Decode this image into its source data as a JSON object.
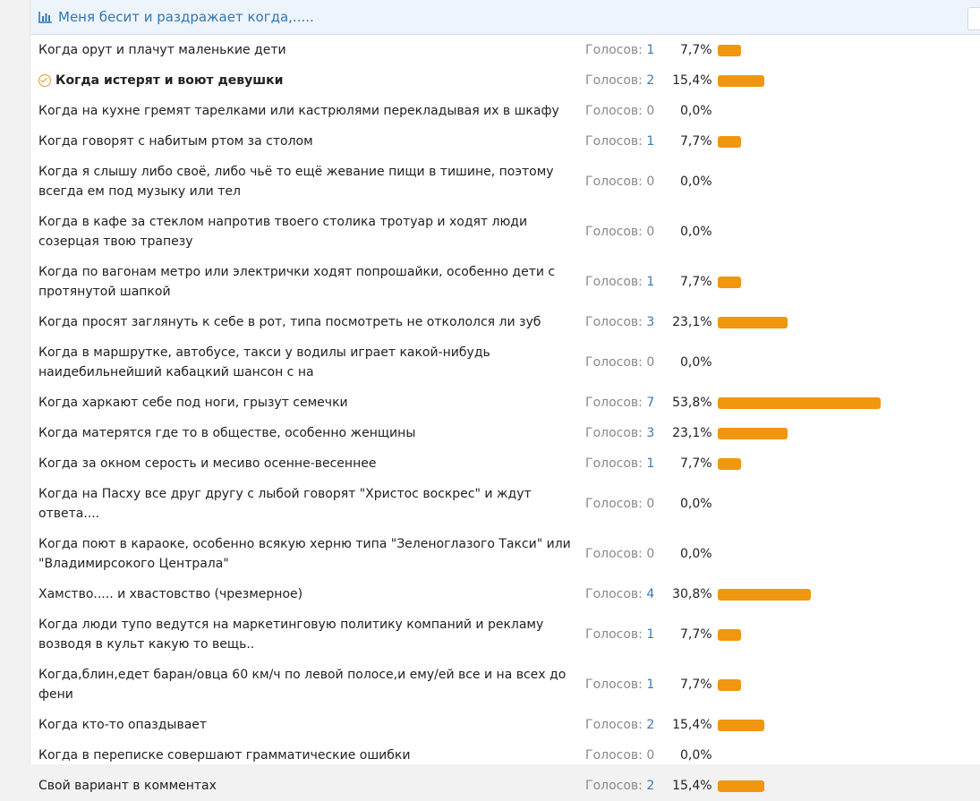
{
  "poll": {
    "title": "Меня бесит и раздражает когда,.....",
    "votes_label": "Голосов: ",
    "options": [
      {
        "label": "Когда орут и плачут маленькие дети",
        "votes": "1",
        "percent": "7,7%",
        "value": 7.7,
        "selected": false
      },
      {
        "label": "Когда истерят и воют девушки",
        "votes": "2",
        "percent": "15,4%",
        "value": 15.4,
        "selected": true
      },
      {
        "label": "Когда на кухне гремят тарелками или кастрюлями перекладывая их в шкафу",
        "votes": "0",
        "percent": "0,0%",
        "value": 0,
        "selected": false
      },
      {
        "label": "Когда говорят с набитым ртом за столом",
        "votes": "1",
        "percent": "7,7%",
        "value": 7.7,
        "selected": false
      },
      {
        "label": "Когда я слышу либо своё, либо чьё то ещё жевание пищи в тишине, поэтому всегда ем под музыку или тел",
        "votes": "0",
        "percent": "0,0%",
        "value": 0,
        "selected": false
      },
      {
        "label": "Когда в кафе за стеклом напротив твоего столика тротуар и ходят люди созерцая твою трапезу",
        "votes": "0",
        "percent": "0,0%",
        "value": 0,
        "selected": false
      },
      {
        "label": "Когда по вагонам метро или электрички ходят попрошайки, особенно дети с протянутой шапкой",
        "votes": "1",
        "percent": "7,7%",
        "value": 7.7,
        "selected": false
      },
      {
        "label": "Когда просят заглянуть к себе в рот, типа посмотреть не откололся ли зуб",
        "votes": "3",
        "percent": "23,1%",
        "value": 23.1,
        "selected": false
      },
      {
        "label": "Когда в маршрутке, автобусе, такси у водилы играет какой-нибудь наидебильнейший кабацкий шансон с на",
        "votes": "0",
        "percent": "0,0%",
        "value": 0,
        "selected": false
      },
      {
        "label": "Когда харкают себе под ноги, грызут семечки",
        "votes": "7",
        "percent": "53,8%",
        "value": 53.8,
        "selected": false
      },
      {
        "label": "Когда матерятся где то в обществе, особенно женщины",
        "votes": "3",
        "percent": "23,1%",
        "value": 23.1,
        "selected": false
      },
      {
        "label": "Когда за окном серость и месиво осенне-весеннее",
        "votes": "1",
        "percent": "7,7%",
        "value": 7.7,
        "selected": false
      },
      {
        "label": "Когда на Пасху все друг другу с лыбой говорят \"Христос воскрес\" и ждут ответа....",
        "votes": "0",
        "percent": "0,0%",
        "value": 0,
        "selected": false
      },
      {
        "label": "Когда поют в караоке, особенно всякую херню типа \"Зеленоглазого Такси\" или \"Владимирсокого Централа\"",
        "votes": "0",
        "percent": "0,0%",
        "value": 0,
        "selected": false
      },
      {
        "label": "Хамство..... и хвастовство (чрезмерное)",
        "votes": "4",
        "percent": "30,8%",
        "value": 30.8,
        "selected": false
      },
      {
        "label": "Когда люди тупо ведутся на маркетинговую политику компаний и рекламу возводя в культ какую то вещь..",
        "votes": "1",
        "percent": "7,7%",
        "value": 7.7,
        "selected": false
      },
      {
        "label": "Когда,блин,едет баран/овца 60 км/ч по левой полосе,и ему/ей все и на всех до фени",
        "votes": "1",
        "percent": "7,7%",
        "value": 7.7,
        "selected": false
      },
      {
        "label": "Когда кто-то опаздывает",
        "votes": "2",
        "percent": "15,4%",
        "value": 15.4,
        "selected": false
      },
      {
        "label": "Когда в переписке совершают грамматические ошибки",
        "votes": "0",
        "percent": "0,0%",
        "value": 0,
        "selected": false
      },
      {
        "label": "Свой вариант в комментах",
        "votes": "2",
        "percent": "15,4%",
        "value": 15.4,
        "selected": false
      }
    ]
  },
  "colors": {
    "bar": "#f0960f",
    "title": "#2f78b4"
  }
}
